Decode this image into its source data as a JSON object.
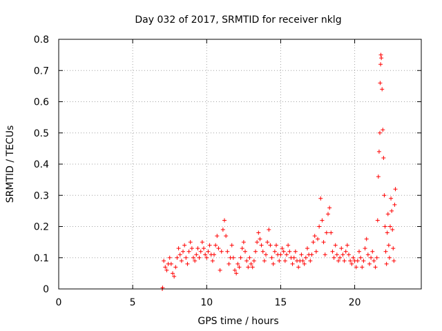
{
  "chart_data": {
    "type": "scatter",
    "title": "Day 032 of 2017, SRMTID for receiver nklg",
    "xlabel": "GPS time / hours",
    "ylabel": "SRMTID / TECUs",
    "xlim": [
      0,
      24.5
    ],
    "ylim": [
      0,
      0.8
    ],
    "xticks": [
      "0",
      "5",
      "10",
      "15",
      "20"
    ],
    "yticks": [
      "0",
      "0.1",
      "0.2",
      "0.3",
      "0.4",
      "0.5",
      "0.6",
      "0.7",
      "0.8"
    ],
    "grid": true,
    "marker": "plus",
    "color": "#ff0000",
    "series": [
      {
        "name": "SRMTID",
        "points": [
          [
            7.0,
            0.0
          ],
          [
            7.02,
            0.004
          ],
          [
            7.1,
            0.09
          ],
          [
            7.2,
            0.07
          ],
          [
            7.3,
            0.06
          ],
          [
            7.4,
            0.08
          ],
          [
            7.5,
            0.1
          ],
          [
            7.6,
            0.08
          ],
          [
            7.7,
            0.05
          ],
          [
            7.8,
            0.04
          ],
          [
            7.9,
            0.07
          ],
          [
            8.0,
            0.1
          ],
          [
            8.1,
            0.13
          ],
          [
            8.2,
            0.11
          ],
          [
            8.3,
            0.09
          ],
          [
            8.4,
            0.12
          ],
          [
            8.5,
            0.14
          ],
          [
            8.6,
            0.1
          ],
          [
            8.7,
            0.08
          ],
          [
            8.8,
            0.12
          ],
          [
            8.9,
            0.15
          ],
          [
            9.0,
            0.13
          ],
          [
            9.1,
            0.1
          ],
          [
            9.2,
            0.09
          ],
          [
            9.3,
            0.11
          ],
          [
            9.4,
            0.13
          ],
          [
            9.5,
            0.1
          ],
          [
            9.6,
            0.12
          ],
          [
            9.7,
            0.15
          ],
          [
            9.8,
            0.13
          ],
          [
            9.9,
            0.11
          ],
          [
            10.0,
            0.1
          ],
          [
            10.1,
            0.12
          ],
          [
            10.2,
            0.14
          ],
          [
            10.3,
            0.11
          ],
          [
            10.4,
            0.09
          ],
          [
            10.5,
            0.11
          ],
          [
            10.6,
            0.14
          ],
          [
            10.7,
            0.17
          ],
          [
            10.8,
            0.13
          ],
          [
            10.9,
            0.06
          ],
          [
            11.0,
            0.12
          ],
          [
            11.1,
            0.19
          ],
          [
            11.2,
            0.22
          ],
          [
            11.3,
            0.17
          ],
          [
            11.4,
            0.12
          ],
          [
            11.5,
            0.08
          ],
          [
            11.6,
            0.1
          ],
          [
            11.7,
            0.14
          ],
          [
            11.8,
            0.1
          ],
          [
            11.9,
            0.06
          ],
          [
            12.0,
            0.05
          ],
          [
            12.1,
            0.08
          ],
          [
            12.2,
            0.07
          ],
          [
            12.3,
            0.1
          ],
          [
            12.4,
            0.13
          ],
          [
            12.5,
            0.15
          ],
          [
            12.6,
            0.12
          ],
          [
            12.7,
            0.09
          ],
          [
            12.8,
            0.07
          ],
          [
            12.9,
            0.1
          ],
          [
            13.0,
            0.08
          ],
          [
            13.1,
            0.07
          ],
          [
            13.2,
            0.09
          ],
          [
            13.3,
            0.12
          ],
          [
            13.4,
            0.15
          ],
          [
            13.5,
            0.18
          ],
          [
            13.6,
            0.16
          ],
          [
            13.7,
            0.14
          ],
          [
            13.8,
            0.12
          ],
          [
            13.9,
            0.09
          ],
          [
            14.0,
            0.11
          ],
          [
            14.1,
            0.15
          ],
          [
            14.2,
            0.19
          ],
          [
            14.3,
            0.14
          ],
          [
            14.4,
            0.1
          ],
          [
            14.5,
            0.08
          ],
          [
            14.6,
            0.12
          ],
          [
            14.7,
            0.14
          ],
          [
            14.8,
            0.11
          ],
          [
            14.9,
            0.09
          ],
          [
            15.0,
            0.11
          ],
          [
            15.1,
            0.13
          ],
          [
            15.2,
            0.12
          ],
          [
            15.3,
            0.09
          ],
          [
            15.4,
            0.11
          ],
          [
            15.5,
            0.14
          ],
          [
            15.6,
            0.12
          ],
          [
            15.7,
            0.1
          ],
          [
            15.8,
            0.08
          ],
          [
            15.9,
            0.1
          ],
          [
            16.0,
            0.12
          ],
          [
            16.1,
            0.09
          ],
          [
            16.2,
            0.07
          ],
          [
            16.3,
            0.09
          ],
          [
            16.4,
            0.11
          ],
          [
            16.5,
            0.09
          ],
          [
            16.6,
            0.08
          ],
          [
            16.7,
            0.1
          ],
          [
            16.8,
            0.13
          ],
          [
            16.9,
            0.11
          ],
          [
            17.0,
            0.09
          ],
          [
            17.1,
            0.11
          ],
          [
            17.2,
            0.15
          ],
          [
            17.3,
            0.17
          ],
          [
            17.4,
            0.12
          ],
          [
            17.5,
            0.16
          ],
          [
            17.6,
            0.2
          ],
          [
            17.7,
            0.29
          ],
          [
            17.8,
            0.22
          ],
          [
            17.9,
            0.15
          ],
          [
            18.0,
            0.11
          ],
          [
            18.1,
            0.18
          ],
          [
            18.2,
            0.24
          ],
          [
            18.3,
            0.26
          ],
          [
            18.4,
            0.18
          ],
          [
            18.5,
            0.12
          ],
          [
            18.6,
            0.1
          ],
          [
            18.7,
            0.14
          ],
          [
            18.8,
            0.11
          ],
          [
            18.9,
            0.09
          ],
          [
            19.0,
            0.1
          ],
          [
            19.1,
            0.13
          ],
          [
            19.2,
            0.11
          ],
          [
            19.3,
            0.09
          ],
          [
            19.4,
            0.12
          ],
          [
            19.5,
            0.14
          ],
          [
            19.6,
            0.11
          ],
          [
            19.7,
            0.09
          ],
          [
            19.8,
            0.08
          ],
          [
            19.9,
            0.1
          ],
          [
            20.0,
            0.09
          ],
          [
            20.1,
            0.07
          ],
          [
            20.2,
            0.09
          ],
          [
            20.3,
            0.12
          ],
          [
            20.4,
            0.1
          ],
          [
            20.5,
            0.07
          ],
          [
            20.6,
            0.09
          ],
          [
            20.7,
            0.13
          ],
          [
            20.8,
            0.16
          ],
          [
            20.9,
            0.11
          ],
          [
            21.0,
            0.08
          ],
          [
            21.1,
            0.1
          ],
          [
            21.2,
            0.12
          ],
          [
            21.3,
            0.09
          ],
          [
            21.4,
            0.07
          ],
          [
            21.5,
            0.1
          ],
          [
            21.55,
            0.22
          ],
          [
            21.6,
            0.36
          ],
          [
            21.65,
            0.44
          ],
          [
            21.7,
            0.5
          ],
          [
            21.72,
            0.66
          ],
          [
            21.75,
            0.72
          ],
          [
            21.77,
            0.75
          ],
          [
            21.8,
            0.74
          ],
          [
            21.85,
            0.64
          ],
          [
            21.9,
            0.51
          ],
          [
            21.95,
            0.42
          ],
          [
            22.0,
            0.3
          ],
          [
            22.05,
            0.2
          ],
          [
            22.1,
            0.12
          ],
          [
            22.15,
            0.08
          ],
          [
            22.2,
            0.18
          ],
          [
            22.25,
            0.24
          ],
          [
            22.3,
            0.14
          ],
          [
            22.35,
            0.1
          ],
          [
            22.4,
            0.2
          ],
          [
            22.45,
            0.29
          ],
          [
            22.5,
            0.25
          ],
          [
            22.55,
            0.19
          ],
          [
            22.6,
            0.13
          ],
          [
            22.65,
            0.09
          ],
          [
            22.7,
            0.27
          ],
          [
            22.75,
            0.32
          ]
        ]
      }
    ]
  }
}
